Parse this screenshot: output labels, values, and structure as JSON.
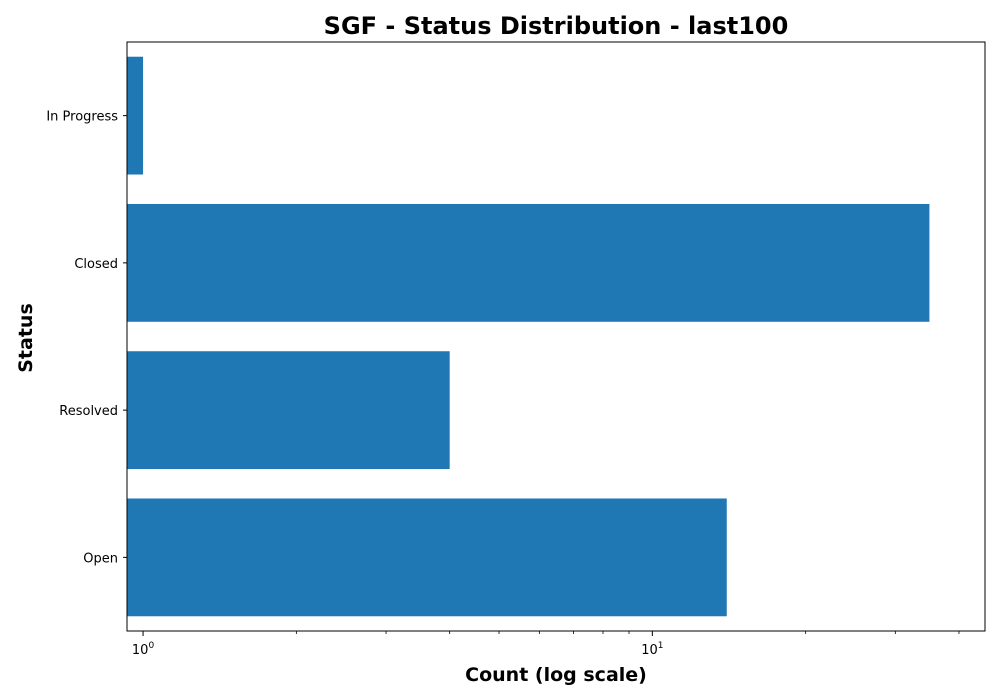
{
  "chart_data": {
    "type": "bar",
    "orientation": "horizontal",
    "title": "SGF - Status Distribution - last100",
    "xlabel": "Count (log scale)",
    "ylabel": "Status",
    "x_scale": "log",
    "xlim": [
      0.93,
      45
    ],
    "categories": [
      "Open",
      "Resolved",
      "Closed",
      "In Progress"
    ],
    "values": [
      14,
      4,
      35,
      1
    ],
    "x_tick_labels": [
      {
        "base": "10",
        "exp": "0"
      },
      {
        "base": "10",
        "exp": "1"
      }
    ],
    "bar_color": "#1f77b4",
    "grid": false,
    "legend": "none"
  }
}
